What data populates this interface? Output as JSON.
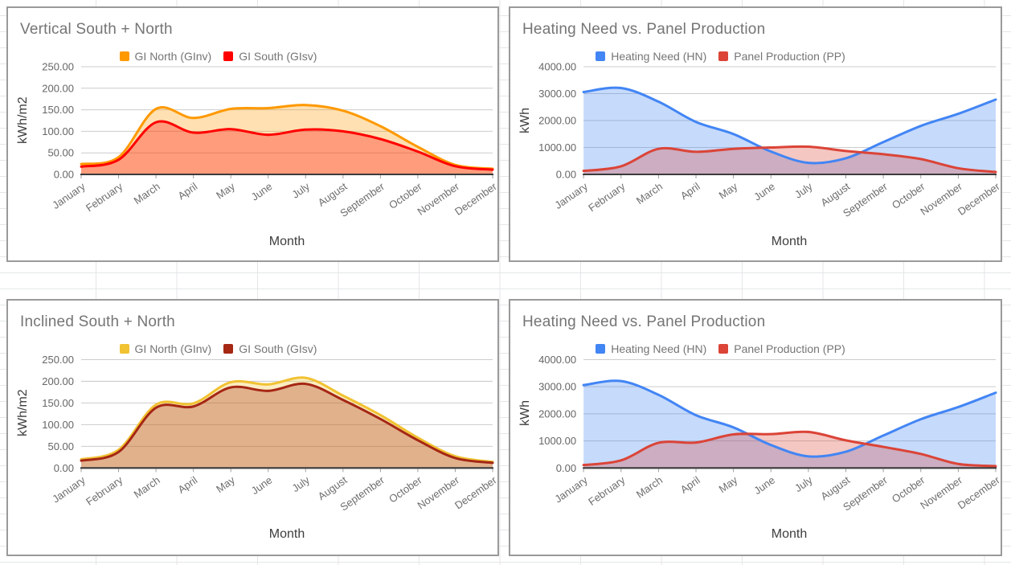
{
  "canvas": {
    "sheet_gridline_color": "#e4e6e8",
    "panel_border_color": "#9a9a9a",
    "plot_gridline_color": "#cccccc",
    "baseline_color": "#3b3b3b",
    "tick_color": "#9e9e9e",
    "title_color": "#757575",
    "axis_label_color": "#6e6e6e",
    "y_label_color": "#666666",
    "axis_title_color": "#3d3d3d",
    "fill_opacity": 0.3
  },
  "chart_data": [
    {
      "id": "vertical-south-north",
      "type": "area",
      "title": "Vertical South + North",
      "xlabel": "Month",
      "ylabel": "kWh/m2",
      "ylim": [
        0,
        250
      ],
      "ytick_step": 50,
      "ytick_decimals": 2,
      "grid": true,
      "smooth": true,
      "legend_position": "top",
      "categories": [
        "January",
        "February",
        "March",
        "April",
        "May",
        "June",
        "July",
        "August",
        "September",
        "October",
        "November",
        "December"
      ],
      "series": [
        {
          "name": "GI North (GInv)",
          "color": "#FF9900",
          "values": [
            24,
            40,
            152,
            131,
            152,
            154,
            161,
            148,
            112,
            64,
            22,
            13
          ]
        },
        {
          "name": "GI South (GIsv)",
          "color": "#FF0000",
          "values": [
            18,
            34,
            121,
            97,
            105,
            92,
            104,
            100,
            82,
            53,
            19,
            11
          ]
        }
      ]
    },
    {
      "id": "heating-vs-panel-vertical",
      "type": "area",
      "title": "Heating Need vs. Panel Production",
      "xlabel": "Month",
      "ylabel": "kWh",
      "ylim": [
        0,
        4000
      ],
      "ytick_step": 1000,
      "ytick_decimals": 2,
      "grid": true,
      "smooth": true,
      "legend_position": "top",
      "categories": [
        "January",
        "February",
        "March",
        "April",
        "May",
        "June",
        "July",
        "August",
        "September",
        "October",
        "November",
        "December"
      ],
      "series": [
        {
          "name": "Heating Need (HN)",
          "color": "#4285F4",
          "values": [
            3060,
            3210,
            2700,
            1950,
            1500,
            850,
            430,
            600,
            1200,
            1800,
            2250,
            2780
          ]
        },
        {
          "name": "Panel Production (PP)",
          "color": "#DB4437",
          "values": [
            130,
            300,
            950,
            840,
            950,
            1000,
            1030,
            870,
            750,
            570,
            230,
            90
          ]
        }
      ]
    },
    {
      "id": "inclined-south-north",
      "type": "area",
      "title": "Inclined South + North",
      "xlabel": "Month",
      "ylabel": "kWh/m2",
      "ylim": [
        0,
        250
      ],
      "ytick_step": 50,
      "ytick_decimals": 2,
      "grid": true,
      "smooth": true,
      "legend_position": "top",
      "categories": [
        "January",
        "February",
        "March",
        "April",
        "May",
        "June",
        "July",
        "August",
        "September",
        "October",
        "November",
        "December"
      ],
      "series": [
        {
          "name": "GI North (GInv)",
          "color": "#F1C232",
          "values": [
            20,
            42,
            146,
            149,
            198,
            193,
            208,
            167,
            122,
            70,
            27,
            14
          ]
        },
        {
          "name": "GI South (GIsv)",
          "color": "#A52714",
          "values": [
            17,
            37,
            139,
            142,
            186,
            178,
            194,
            157,
            113,
            64,
            23,
            12
          ]
        }
      ]
    },
    {
      "id": "heating-vs-panel-inclined",
      "type": "area",
      "title": "Heating Need vs. Panel Production",
      "xlabel": "Month",
      "ylabel": "kWh",
      "ylim": [
        0,
        4000
      ],
      "ytick_step": 1000,
      "ytick_decimals": 2,
      "grid": true,
      "smooth": true,
      "legend_position": "top",
      "categories": [
        "January",
        "February",
        "March",
        "April",
        "May",
        "June",
        "July",
        "August",
        "September",
        "October",
        "November",
        "December"
      ],
      "series": [
        {
          "name": "Heating Need (HN)",
          "color": "#4285F4",
          "values": [
            3060,
            3210,
            2700,
            1950,
            1500,
            850,
            430,
            600,
            1200,
            1800,
            2250,
            2780
          ]
        },
        {
          "name": "Panel Production (PP)",
          "color": "#DB4437",
          "values": [
            110,
            280,
            930,
            940,
            1240,
            1250,
            1330,
            1020,
            780,
            520,
            150,
            70
          ]
        }
      ]
    }
  ]
}
